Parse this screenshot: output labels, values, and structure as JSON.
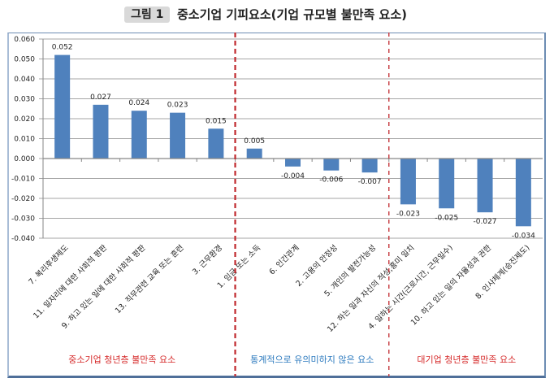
{
  "header": {
    "figure_badge": "그림 1",
    "title": "중소기업 기피요소(기업 규모별 불만족 요소)"
  },
  "groups": [
    {
      "label": "중소기업 청년층 불만족 요소",
      "color": "#d62b2b"
    },
    {
      "label": "통계적으로 유의미하지 않은 요소",
      "color": "#2e7bbf"
    },
    {
      "label": "대기업 청년층 불만족 요소",
      "color": "#d62b2b"
    }
  ],
  "colors": {
    "bar": "#4f81bd",
    "divider": "#c0282d",
    "grid": "#a6a6a6",
    "axis": "#868686"
  },
  "chart_data": {
    "type": "bar",
    "title": "중소기업 기피요소(기업 규모별 불만족 요소)",
    "xlabel": "",
    "ylabel": "",
    "ylim": [
      -0.04,
      0.06
    ],
    "yticks": [
      0.06,
      0.05,
      0.04,
      0.03,
      0.02,
      0.01,
      0.0,
      -0.01,
      -0.02,
      -0.03,
      -0.04
    ],
    "ytick_labels": [
      "0.060",
      "0.050",
      "0.040",
      "0.030",
      "0.020",
      "0.010",
      "0.000",
      "-0.010",
      "-0.020",
      "-0.030",
      "-0.040"
    ],
    "grid": true,
    "categories": [
      "7. 복리후생제도",
      "11. 일자리에 대한 사회적 평판",
      "9. 하고 있는 일에 대한 사회적 평판",
      "13. 직무관련 교육 또는 훈련",
      "3. 근무환경",
      "1. 임금 또는 소득",
      "6. 인간관계",
      "2. 고용의 안정성",
      "5. 개인의 발전가능성",
      "12. 하는 일과 자신의 적성,흥미 일치",
      "4. 일하는 시간(근로시간, 근무일수)",
      "10. 하고 있는 일의 자율성과 권한",
      "8. 인사체계(승진제도)"
    ],
    "values": [
      0.052,
      0.027,
      0.024,
      0.023,
      0.015,
      0.005,
      -0.004,
      -0.006,
      -0.007,
      -0.023,
      -0.025,
      -0.027,
      -0.034
    ],
    "value_labels": [
      "0.052",
      "0.027",
      "0.024",
      "0.023",
      "0.015",
      "0.005",
      "-0.004",
      "-0.006",
      "-0.007",
      "-0.023",
      "-0.025",
      "-0.027",
      "-0.034"
    ],
    "group_boundaries_after_index": [
      4,
      8
    ],
    "legend": "none"
  }
}
